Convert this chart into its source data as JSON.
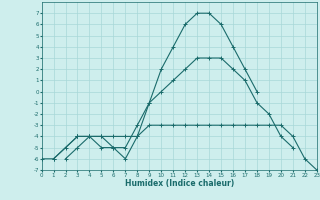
{
  "xlabel": "Humidex (Indice chaleur)",
  "background_color": "#ceeeed",
  "grid_color": "#a8d8d8",
  "line_color": "#1a6b6b",
  "xlim": [
    0,
    23
  ],
  "ylim": [
    -7,
    8
  ],
  "xticks": [
    0,
    1,
    2,
    3,
    4,
    5,
    6,
    7,
    8,
    9,
    10,
    11,
    12,
    13,
    14,
    15,
    16,
    17,
    18,
    19,
    20,
    21,
    22,
    23
  ],
  "yticks": [
    -7,
    -6,
    -5,
    -4,
    -3,
    -2,
    -1,
    0,
    1,
    2,
    3,
    4,
    5,
    6,
    7
  ],
  "ytick_labels": [
    "7",
    "",
    "5",
    "",
    "3",
    "",
    "1",
    "0",
    "-1",
    "",
    "-3",
    "",
    "-5",
    "",
    "-7"
  ],
  "series": [
    [
      2,
      -6,
      3,
      -5,
      4,
      -4,
      5,
      -4,
      6,
      -5,
      7,
      -6,
      8,
      -4,
      9,
      -1,
      10,
      2,
      11,
      4,
      12,
      6,
      13,
      7,
      14,
      7,
      15,
      6,
      16,
      4,
      17,
      2,
      18,
      0
    ],
    [
      3,
      -4,
      4,
      -4,
      5,
      -5,
      6,
      -5,
      7,
      -5,
      8,
      -3,
      9,
      -1,
      10,
      0,
      11,
      1,
      12,
      2,
      13,
      3,
      14,
      3,
      15,
      3,
      16,
      2,
      17,
      1,
      18,
      -1,
      19,
      -2,
      20,
      -4,
      21,
      -5
    ],
    [
      1,
      -6,
      3,
      -4
    ],
    [
      0,
      -6,
      1,
      -6,
      2,
      -5,
      3,
      -4,
      4,
      -4,
      5,
      -4,
      6,
      -4,
      7,
      -4,
      8,
      -4,
      9,
      -3,
      10,
      -3,
      11,
      -3,
      12,
      -3,
      13,
      -3,
      14,
      -3,
      15,
      -3,
      16,
      -3,
      17,
      -3,
      18,
      -3,
      19,
      -3,
      20,
      -3,
      21,
      -4,
      22,
      -6,
      23,
      -7
    ]
  ]
}
